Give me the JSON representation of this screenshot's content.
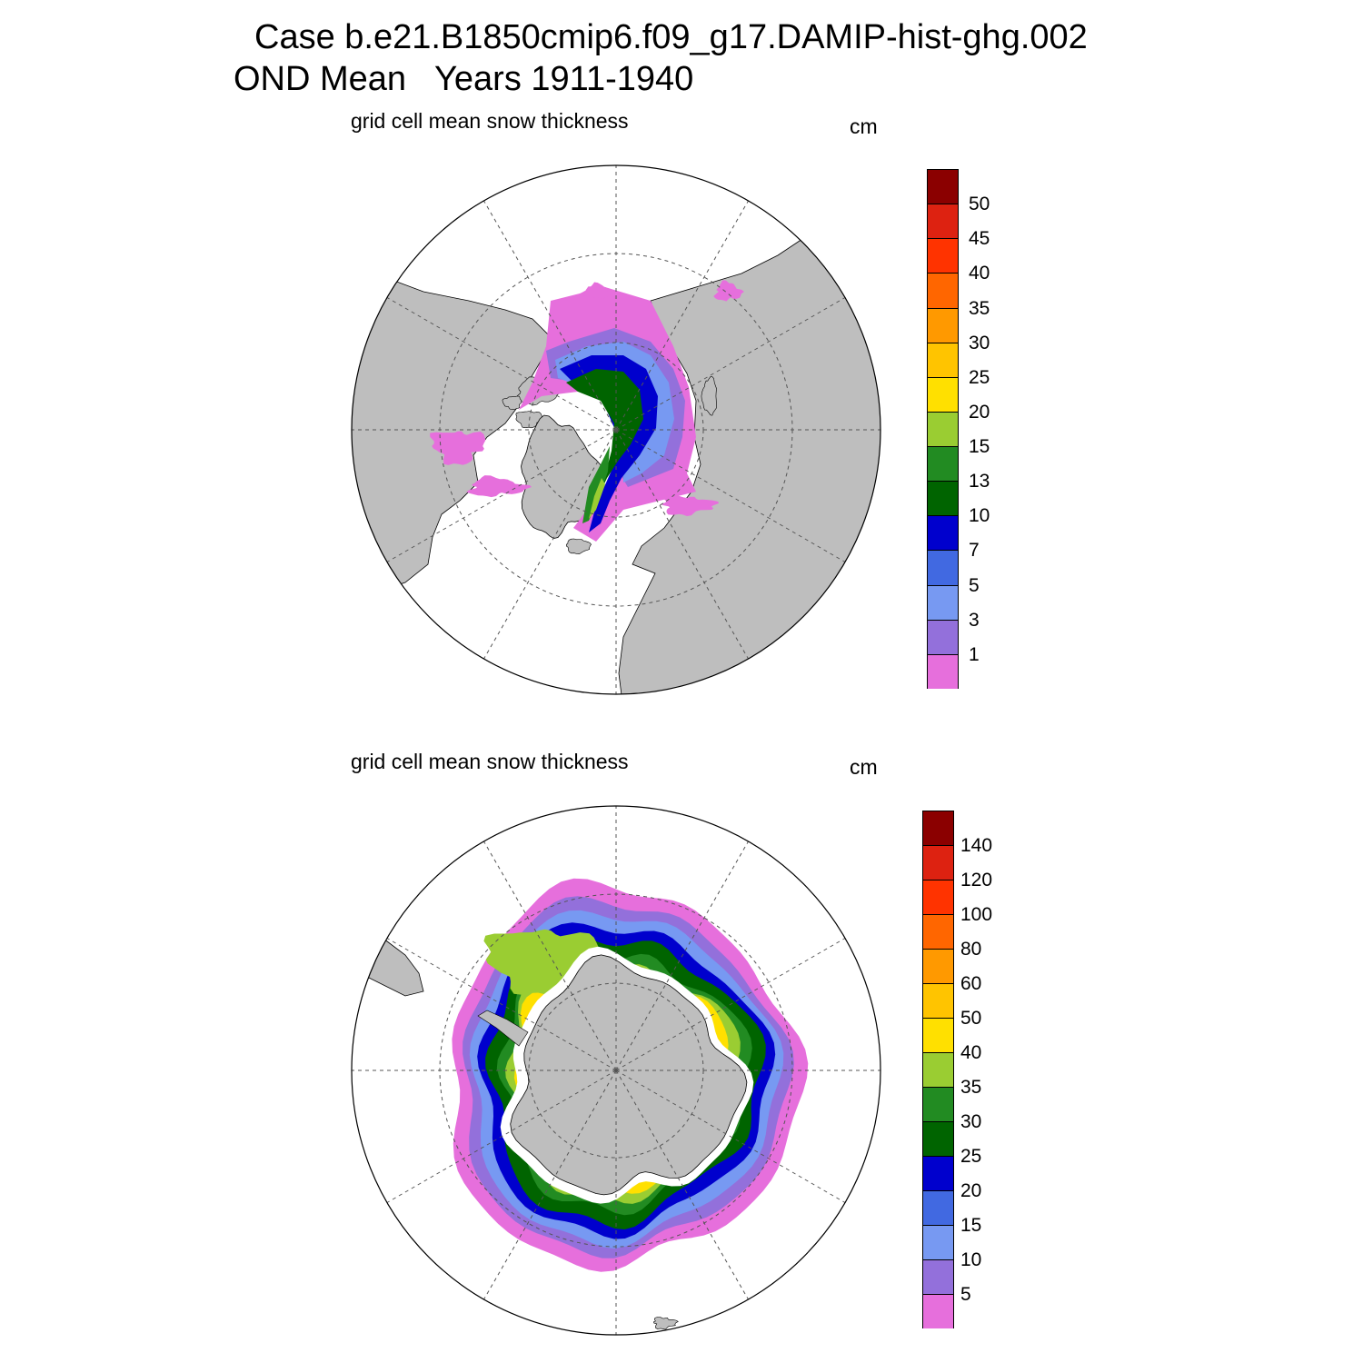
{
  "header": {
    "title_line1": "Case b.e21.B1850cmip6.f09_g17.DAMIP-hist-ghg.002",
    "title_line2": "OND Mean   Years 1911-1940"
  },
  "colors": {
    "land": "#bebebe",
    "ocean": "#ffffff",
    "grid": "#555555",
    "colorbar": [
      "#e66fdc",
      "#9370db",
      "#7799f2",
      "#4169e1",
      "#0000cd",
      "#006400",
      "#228b22",
      "#9acd32",
      "#ffe000",
      "#ffc400",
      "#ff9900",
      "#ff6600",
      "#ff3300",
      "#dd2211",
      "#8b0000"
    ]
  },
  "panels": [
    {
      "id": "north",
      "label": "grid cell mean snow thickness",
      "unit": "cm",
      "hemisphere": "Arctic",
      "levels": [
        "1",
        "3",
        "5",
        "7",
        "10",
        "13",
        "15",
        "20",
        "25",
        "30",
        "35",
        "40",
        "45",
        "50"
      ]
    },
    {
      "id": "south",
      "label": "grid cell mean snow thickness",
      "unit": "cm",
      "hemisphere": "Antarctic",
      "levels": [
        "5",
        "10",
        "15",
        "20",
        "25",
        "30",
        "35",
        "40",
        "50",
        "60",
        "80",
        "100",
        "120",
        "140"
      ]
    }
  ]
}
